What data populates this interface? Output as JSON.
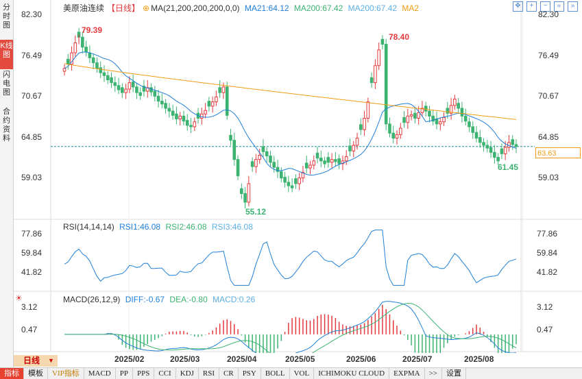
{
  "sidebar": {
    "tabs": [
      {
        "label": "分时图",
        "active": false
      },
      {
        "label": "K线图",
        "active": true
      },
      {
        "label": "闪电图",
        "active": false
      },
      {
        "label": "合约资料",
        "active": false
      }
    ]
  },
  "main_legend": {
    "title": "美原油连续",
    "period": "【日线】",
    "params": "MA(21,200,200,200,0,0)",
    "ma21": "MA21:64.12",
    "ma200a": "MA200:67.42",
    "ma200b": "MA200:67.42",
    "ma2": "MA2"
  },
  "indicator_rsi": {
    "name": "RSI(14,14,14)",
    "rsi1": "RSI1:46.08",
    "rsi2": "RSI2:46.08",
    "rsi3": "RSI3:46.08"
  },
  "indicator_macd": {
    "name": "MACD(26,12,9)",
    "diff": "DIFF:-0.67",
    "dea": "DEA:-0.80",
    "macd": "MACD:0.26"
  },
  "price_axis": [
    "82.30",
    "76.49",
    "70.67",
    "64.85",
    "59.03"
  ],
  "rsi_axis": [
    "77.86",
    "59.84",
    "41.82"
  ],
  "macd_axis": [
    "3.12",
    "0.47"
  ],
  "annotations": {
    "high1": "79.39",
    "high2": "78.40",
    "low1": "55.12",
    "low2": "61.45"
  },
  "current_price": "63.63",
  "dates": [
    "2025/02",
    "2025/03",
    "2025/04",
    "2025/05",
    "2025/06",
    "2025/07",
    "2025/08"
  ],
  "period_button": "日线",
  "bottom_tabs": [
    "指标",
    "模板",
    "VIP指标",
    "MACD",
    "PP",
    "PPS",
    "CCI",
    "KDJ",
    "RSI",
    "CR",
    "PSY",
    "BOLL",
    "VOL",
    "ICHIMOKU CLOUD",
    "EXPMA",
    ">>",
    "设置"
  ],
  "colors": {
    "up": "#e4393c",
    "down": "#3cb371",
    "ma21": "#1e7fd8",
    "ma200": "#f39c12",
    "accent": "#e44a3e"
  },
  "chart_data": {
    "type": "candlestick",
    "closes": [
      74.6,
      75.2,
      76.8,
      78.2,
      79.0,
      77.6,
      76.9,
      76.1,
      75.4,
      74.6,
      74.0,
      73.6,
      73.0,
      72.6,
      72.2,
      71.6,
      71.2,
      71.7,
      72.6,
      72.0,
      71.2,
      70.8,
      71.4,
      71.9,
      71.3,
      70.7,
      70.0,
      69.6,
      69.0,
      68.6,
      68.0,
      67.5,
      67.9,
      67.2,
      66.6,
      66.4,
      67.1,
      67.6,
      68.2,
      68.7,
      69.3,
      69.9,
      70.6,
      71.2,
      72.0,
      68.0,
      64.5,
      61.8,
      59.5,
      57.0,
      55.8,
      58.4,
      60.8,
      61.8,
      62.4,
      62.9,
      62.3,
      61.4,
      60.7,
      60.1,
      59.2,
      58.6,
      58.1,
      57.8,
      58.4,
      59.2,
      60.0,
      60.6,
      61.0,
      61.6,
      62.0,
      61.6,
      61.2,
      61.4,
      61.8,
      61.5,
      61.2,
      61.6,
      62.2,
      63.0,
      63.8,
      64.8,
      66.0,
      67.6,
      69.9,
      72.6,
      75.0,
      77.2,
      78.0,
      66.8,
      65.5,
      64.8,
      65.3,
      66.2,
      67.0,
      67.9,
      68.1,
      67.6,
      68.4,
      69.0,
      68.6,
      67.9,
      67.2,
      66.8,
      67.1,
      67.7,
      68.3,
      69.4,
      70.3,
      69.0,
      67.9,
      67.2,
      66.4,
      65.6,
      64.8,
      64.2,
      63.8,
      63.4,
      62.8,
      62.1,
      61.6,
      62.6,
      63.5,
      64.2,
      63.9,
      63.6
    ],
    "ma21_last": 64.12,
    "ma200_last": 67.42,
    "annotated_high": [
      79.39,
      78.4
    ],
    "annotated_low": [
      55.12,
      61.45
    ],
    "last_price": 63.63
  }
}
